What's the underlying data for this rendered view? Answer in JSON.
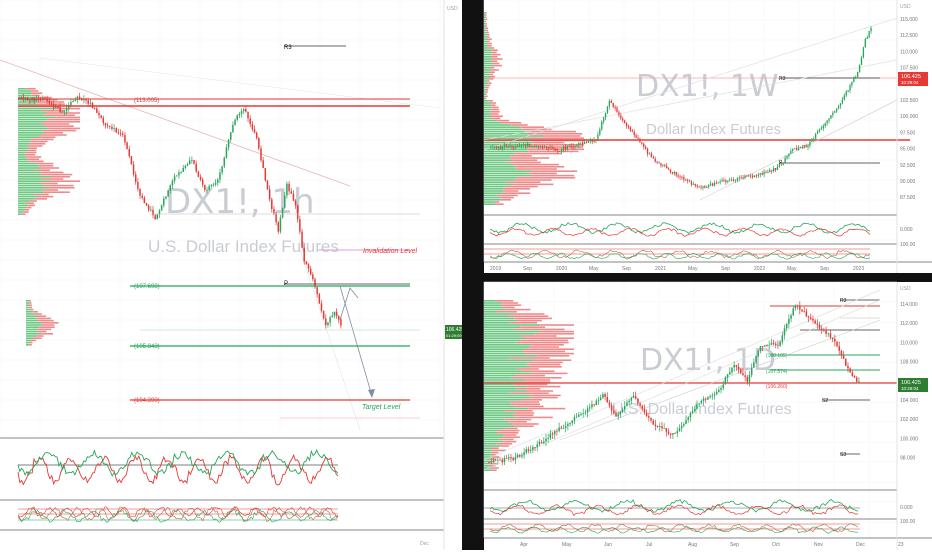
{
  "colors": {
    "up": "#26a65b",
    "down": "#e53935",
    "grid": "#eceff3",
    "axis": "#9aa0a6",
    "watermark": "#c9cdd3",
    "frame": "#111111"
  },
  "left": {
    "watermark": "DX1!, 1h",
    "subtitle": "U.S. Dollar Index Futures",
    "annotations": {
      "invalidation": "Invalidation Level",
      "target": "Target Level",
      "r3": "R3",
      "p": "P"
    },
    "levels": [
      {
        "label": "(113.005)",
        "value": 113.0
      },
      {
        "label": "(107.698)",
        "value": 107.7
      },
      {
        "label": "(105.843)",
        "value": 105.84
      },
      {
        "label": "(104.390)",
        "value": 104.39
      }
    ],
    "axis_unit": "USD",
    "price_tag": {
      "value": "106.425",
      "time": "01:29:09"
    },
    "bottom_label": "Dec"
  },
  "top_right": {
    "watermark": "DX1!, 1W",
    "subtitle": "Dollar Index Futures",
    "axis_unit": "USD",
    "y_ticks": [
      "115.000",
      "112.500",
      "110.000",
      "107.500",
      "105.000",
      "102.500",
      "100.000",
      "97.500",
      "95.000",
      "92.500",
      "90.000",
      "87.500"
    ],
    "x_ticks": [
      "2019",
      "Sep",
      "2020",
      "May",
      "Sep",
      "2021",
      "May",
      "Sep",
      "2022",
      "May",
      "Sep",
      "2023"
    ],
    "ind_ticks": [
      "0.000",
      "100.00"
    ],
    "price_tag": {
      "value": "106.425",
      "time": "10:29:04"
    },
    "annotations": {
      "r3": "R3",
      "p": "P"
    }
  },
  "bottom_right": {
    "watermark": "DX1!, 1D",
    "subtitle": "U.S. Dollar Index Futures",
    "axis_unit": "USD",
    "y_ticks": [
      "114.000",
      "112.000",
      "110.000",
      "108.000",
      "106.000",
      "104.000",
      "102.000",
      "100.000",
      "98.000"
    ],
    "x_ticks": [
      "Apr",
      "May",
      "Jun",
      "Jul",
      "Aug",
      "Sep",
      "Oct",
      "Nov",
      "Dec",
      "23"
    ],
    "ind_ticks": [
      "0.000",
      "100.00"
    ],
    "price_tag": {
      "value": "106.425",
      "time": "10:29:04"
    },
    "annotations": {
      "r3": "R3",
      "r2": "R2",
      "s2": "S2",
      "s3": "S3"
    },
    "level_labels": [
      "(108.105)",
      "(107.574)",
      "(106.260)"
    ]
  },
  "chart_data": [
    {
      "type": "candlestick",
      "timeframe": "1h",
      "series_name": "DX1!",
      "y_range": [
        103,
        116
      ],
      "levels": [
        113.005,
        107.698,
        105.843,
        104.39
      ],
      "last": 106.425
    },
    {
      "type": "candlestick",
      "timeframe": "1W",
      "series_name": "DX1!",
      "y_range": [
        86,
        116
      ],
      "x_range": [
        "2018",
        "2023"
      ],
      "last": 106.425
    },
    {
      "type": "candlestick",
      "timeframe": "1D",
      "series_name": "DX1!",
      "y_range": [
        97,
        116
      ],
      "x_range": [
        "Mar",
        "23"
      ],
      "last": 106.425
    }
  ]
}
